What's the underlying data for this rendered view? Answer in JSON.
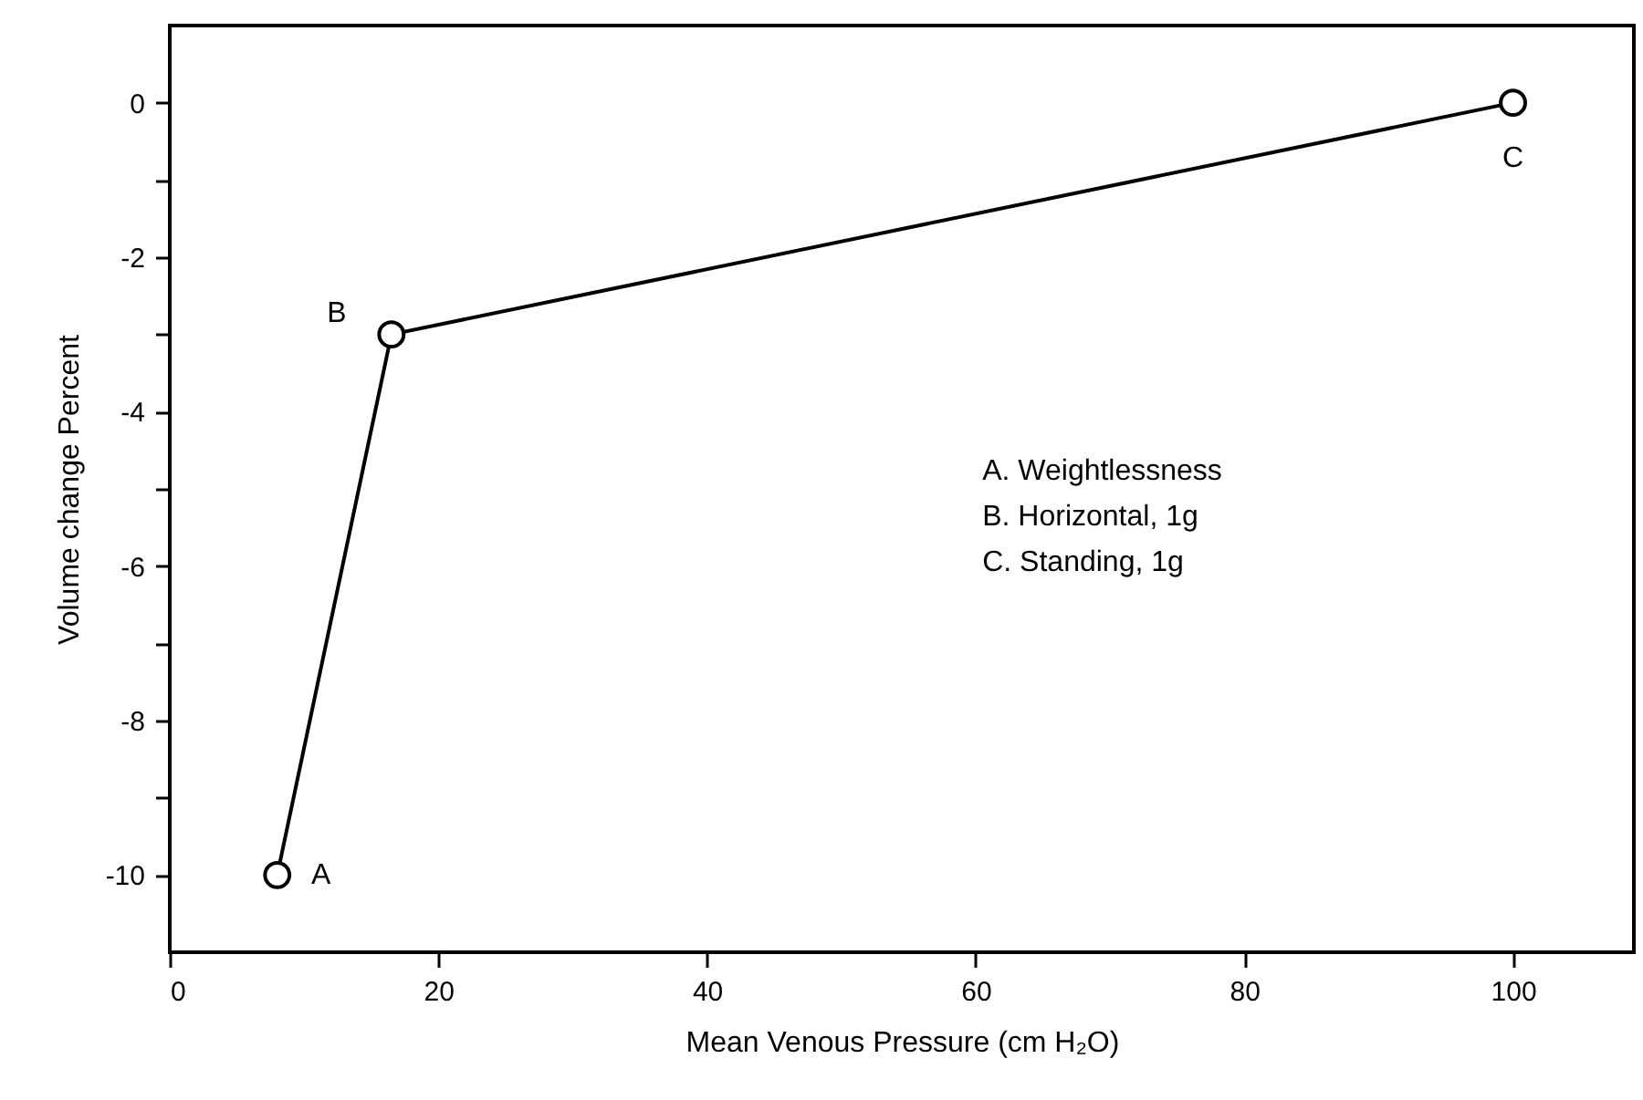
{
  "chart_data": {
    "type": "line",
    "xlabel": "Mean Venous Pressure (cm H₂O)",
    "ylabel": "Volume change Percent",
    "x": [
      8,
      16.5,
      100
    ],
    "series": [
      {
        "color": "#000000",
        "values": [
          -10,
          -3,
          0
        ]
      }
    ],
    "xlim": [
      0,
      109
    ],
    "xticks": [
      0,
      20,
      40,
      60,
      80,
      100
    ],
    "ylim": [
      -11,
      1
    ],
    "yticks": [
      0,
      {
        "value": -1,
        "label": null
      },
      -2,
      {
        "value": -3,
        "label": null
      },
      -4,
      {
        "value": -5,
        "label": null
      },
      -6,
      {
        "value": -7,
        "label": null
      },
      -8,
      {
        "value": -9,
        "label": null
      },
      -10
    ],
    "marker": "circle",
    "line_style": "solid",
    "annotations": [
      {
        "text": "A",
        "x": 8,
        "y": -10
      },
      {
        "text": "B",
        "x": 16.5,
        "y": -3
      },
      {
        "text": "C",
        "x": 100,
        "y": 0
      },
      "A. Weightlessness",
      "B. Horizontal, 1g",
      "C. Standing, 1g"
    ]
  }
}
